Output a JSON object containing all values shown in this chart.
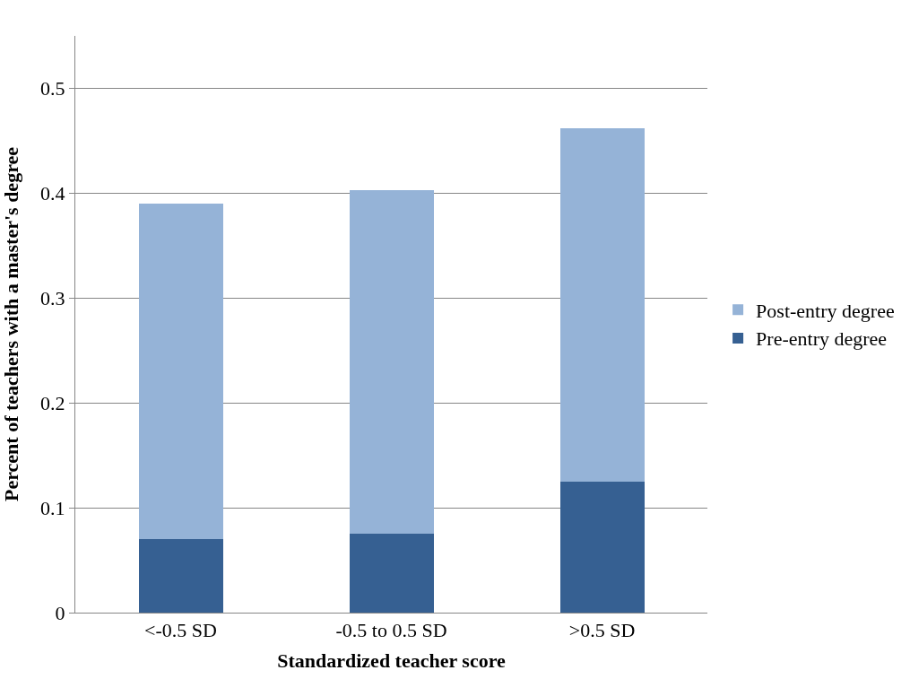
{
  "chart_data": {
    "type": "bar",
    "stacked": true,
    "xlabel": "Standardized teacher score",
    "ylabel": "Percent of teachers with a master's degree",
    "categories": [
      "<-0.5 SD",
      "-0.5 to 0.5 SD",
      ">0.5 SD"
    ],
    "series": [
      {
        "name": "Pre-entry degree",
        "color": "#366092",
        "values": [
          0.07,
          0.075,
          0.125
        ]
      },
      {
        "name": "Post-entry degree",
        "color": "#95b3d7",
        "values": [
          0.32,
          0.328,
          0.337
        ]
      }
    ],
    "ylim": [
      0,
      0.55
    ],
    "yticks": [
      0,
      0.1,
      0.2,
      0.3,
      0.4,
      0.5
    ],
    "grid": "y",
    "legend": "right"
  }
}
